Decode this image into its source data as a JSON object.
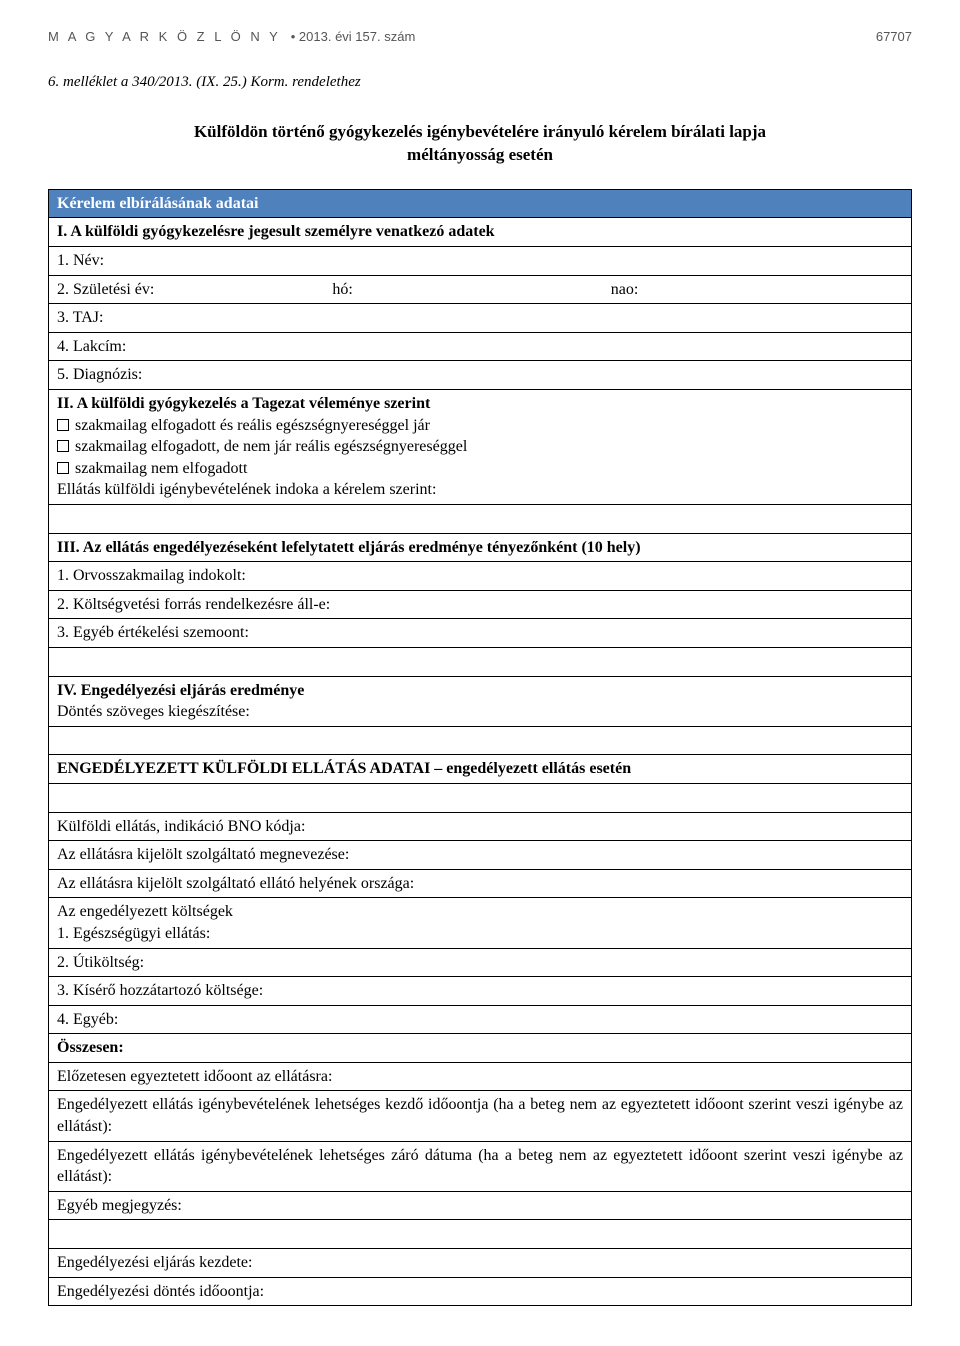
{
  "header": {
    "publication_spaced": "M A G Y A R   K Ö Z L Ö N Y",
    "issue": "• 2013. évi 157. szám",
    "page_number": "67707"
  },
  "annex_line": "6. melléklet a 340/2013. (IX. 25.) Korm. rendelethez",
  "title_line1": "Külföldön történő gyógykezelés igénybevételére irányuló kérelem bírálati lapja",
  "title_line2": "méltányosság esetén",
  "section_header": "Kérelem elbírálásának adatai",
  "sectionI": {
    "heading": "I. A külföldi gyógykezelésre jegesult személyre venatkezó adatek",
    "name_label": "1. Név:",
    "birth_label": "2. Születési év:",
    "birth_month": "hó:",
    "birth_day": "nao:",
    "taj": "3. TAJ:",
    "address": "4. Lakcím:",
    "diagnosis": "5. Diagnózis:"
  },
  "sectionII": {
    "heading": "II. A külföldi gyógykezelés a Tagezat véleménye szerint",
    "opt1": "szakmailag elfogadott és reális egészségnyereséggel jár",
    "opt2": "szakmailag elfogadott, de nem jár reális egészségnyereséggel",
    "opt3": "szakmailag nem elfogadott",
    "indication": "Ellátás külföldi igénybevételének indoka a kérelem szerint:"
  },
  "sectionIII": {
    "heading": "III. Az ellátás engedélyezéseként lefelytatett eljárás eredménye tényezőnként (10 hely)",
    "row1": "1. Orvosszakmailag indokolt:",
    "row2": "2. Költségvetési forrás rendelkezésre áll-e:",
    "row3": "3. Egyéb értékelési szemoont:"
  },
  "sectionIV": {
    "heading": "IV. Engedélyezési eljárás eredménye",
    "subtext": "Döntés szöveges kiegészítése:"
  },
  "approved": {
    "heading": "ENGEDÉLYEZETT KÜLFÖLDI ELLÁTÁS ADATAI – engedélyezett ellátás esetén",
    "bno": "Külföldi ellátás, indikáció BNO kódja:",
    "provider_name": "Az ellátásra kijelölt szolgáltató megnevezése:",
    "provider_country": "Az ellátásra kijelölt szolgáltató ellátó helyének országa:",
    "costs_label": "Az engedélyezett költségek",
    "cost1": "1. Egészségügyi ellátás:",
    "cost2": "2. Útiköltség:",
    "cost3": "3. Kísérő hozzátartozó költsége:",
    "cost4": "4. Egyéb:",
    "total": "Összesen:",
    "pre_agreed": "Előzetesen egyeztetett időoont az ellátásra:",
    "start_date": "Engedélyezett ellátás igénybevételének lehetséges kezdő időoontja (ha a beteg nem az egyeztetett időoont szerint veszi igénybe az ellátást):",
    "end_date": "Engedélyezett ellátás igénybevételének lehetséges záró dátuma (ha a beteg nem az egyeztetett időoont szerint veszi igénybe az ellátást):",
    "other_note": "Egyéb megjegyzés:",
    "proc_start": "Engedélyezési eljárás kezdete:",
    "decision_date": "Engedélyezési döntés időoontja:"
  },
  "colors": {
    "header_bg": "#4f81bd",
    "header_text": "#ffffff",
    "border": "#000000"
  }
}
